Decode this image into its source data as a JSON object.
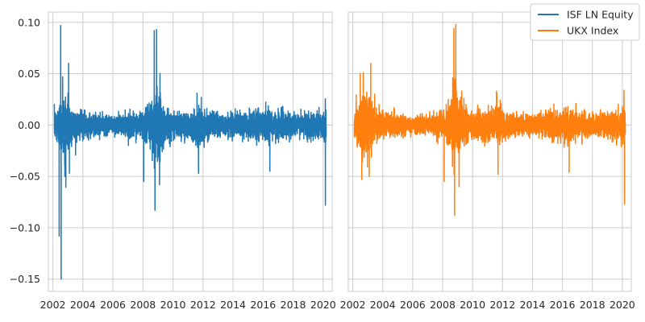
{
  "chart_data": [
    {
      "type": "line",
      "panel": "left",
      "grid": true,
      "xlim": [
        2001.7,
        2020.6
      ],
      "ylim": [
        -0.162,
        0.11
      ],
      "x_ticks": [
        2002,
        2004,
        2006,
        2008,
        2010,
        2012,
        2014,
        2016,
        2018,
        2020
      ],
      "x_tick_labels": [
        "2002",
        "2004",
        "2006",
        "2008",
        "2010",
        "2012",
        "2014",
        "2016",
        "2018",
        "2020"
      ],
      "y_ticks": [
        -0.15,
        -0.1,
        -0.05,
        0.0,
        0.05,
        0.1
      ],
      "y_tick_labels": [
        "−0.15",
        "−0.10",
        "−0.05",
        "0.00",
        "0.05",
        "0.10"
      ],
      "series": [
        {
          "name": "ISF LN Equity",
          "color": "#1f77b4",
          "x_range": [
            2002.1,
            2020.2
          ],
          "typical_abs": 0.012,
          "spikes": [
            {
              "x": 2002.42,
              "value": -0.108
            },
            {
              "x": 2002.52,
              "value": 0.097
            },
            {
              "x": 2002.55,
              "value": -0.15
            },
            {
              "x": 2002.65,
              "value": 0.047
            },
            {
              "x": 2002.8,
              "value": -0.05
            },
            {
              "x": 2003.05,
              "value": 0.06
            },
            {
              "x": 2003.1,
              "value": -0.047
            },
            {
              "x": 2008.05,
              "value": -0.055
            },
            {
              "x": 2008.75,
              "value": 0.092
            },
            {
              "x": 2008.8,
              "value": -0.083
            },
            {
              "x": 2008.9,
              "value": 0.093
            },
            {
              "x": 2009.1,
              "value": -0.058
            },
            {
              "x": 2011.6,
              "value": 0.031
            },
            {
              "x": 2011.7,
              "value": -0.047
            },
            {
              "x": 2016.45,
              "value": -0.045
            },
            {
              "x": 2020.15,
              "value": -0.078
            },
            {
              "x": 2020.18,
              "value": 0.015
            }
          ]
        }
      ]
    },
    {
      "type": "line",
      "panel": "right",
      "grid": true,
      "xlim": [
        2001.7,
        2020.6
      ],
      "ylim": [
        -0.162,
        0.11
      ],
      "x_ticks": [
        2002,
        2004,
        2006,
        2008,
        2010,
        2012,
        2014,
        2016,
        2018,
        2020
      ],
      "x_tick_labels": [
        "2002",
        "2004",
        "2006",
        "2008",
        "2010",
        "2012",
        "2014",
        "2016",
        "2018",
        "2020"
      ],
      "series": [
        {
          "name": "UKX Index",
          "color": "#ff7f0e",
          "x_range": [
            2002.1,
            2020.2
          ],
          "typical_abs": 0.012,
          "spikes": [
            {
              "x": 2002.5,
              "value": 0.05
            },
            {
              "x": 2002.6,
              "value": -0.053
            },
            {
              "x": 2002.7,
              "value": 0.051
            },
            {
              "x": 2003.1,
              "value": -0.05
            },
            {
              "x": 2003.2,
              "value": 0.06
            },
            {
              "x": 2008.1,
              "value": -0.055
            },
            {
              "x": 2008.75,
              "value": 0.094
            },
            {
              "x": 2008.8,
              "value": -0.088
            },
            {
              "x": 2008.88,
              "value": 0.098
            },
            {
              "x": 2009.1,
              "value": -0.06
            },
            {
              "x": 2011.6,
              "value": 0.033
            },
            {
              "x": 2011.7,
              "value": -0.048
            },
            {
              "x": 2016.45,
              "value": -0.046
            },
            {
              "x": 2020.15,
              "value": -0.077
            },
            {
              "x": 2020.18,
              "value": 0.012
            }
          ]
        }
      ]
    }
  ],
  "legend": {
    "placement": "top-right",
    "entries": [
      {
        "label": "ISF LN Equity",
        "color": "#1f77b4"
      },
      {
        "label": "UKX Index",
        "color": "#ff7f0e"
      }
    ]
  },
  "style": {
    "grid_color": "#cccccc",
    "axis_edge_color": "#cccccc",
    "text_color": "#262626"
  }
}
